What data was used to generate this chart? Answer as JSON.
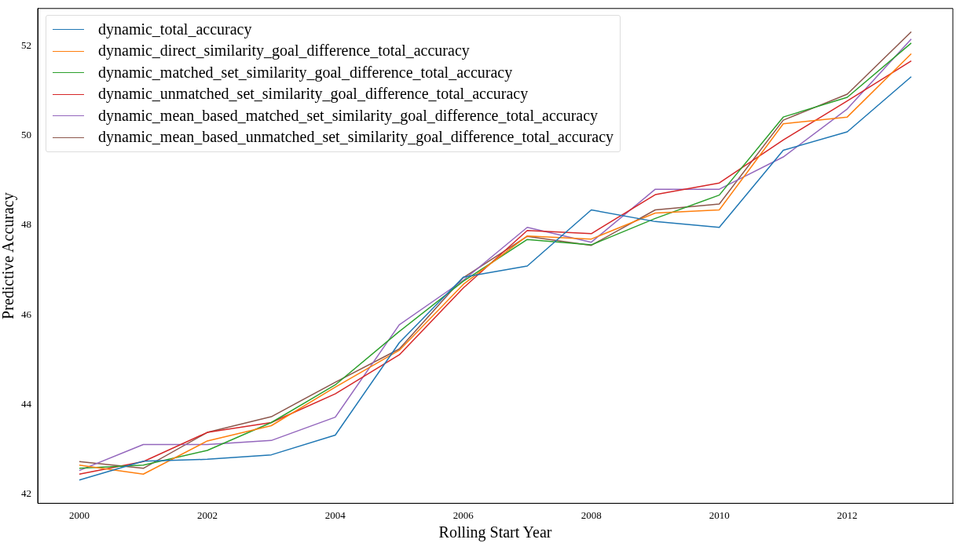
{
  "chart_data": {
    "type": "line",
    "xlabel": "Rolling Start Year",
    "ylabel": "Predictive Accuracy",
    "x": [
      2000,
      2001,
      2002,
      2003,
      2004,
      2005,
      2006,
      2007,
      2008,
      2009,
      2010,
      2011,
      2012,
      2013
    ],
    "xlim": [
      1999.35,
      2013.65
    ],
    "xticks": [
      2000,
      2002,
      2004,
      2006,
      2008,
      2010,
      2012
    ],
    "ylim": [
      41.8,
      52.83
    ],
    "yticks": [
      42,
      44,
      46,
      48,
      50,
      52
    ],
    "grid": false,
    "legend": "top left",
    "marker": "none",
    "line_style": "solid",
    "series": [
      {
        "name": "dynamic_total_accuracy",
        "color": "#1f77b4",
        "values": [
          42.32,
          42.74,
          42.78,
          42.88,
          43.32,
          45.38,
          46.84,
          47.09,
          48.34,
          48.08,
          47.95,
          49.67,
          50.08,
          51.31
        ]
      },
      {
        "name": "dynamic_direct_similarity_goal_difference_total_accuracy",
        "color": "#ff7f0e",
        "values": [
          42.65,
          42.45,
          43.19,
          43.53,
          44.39,
          45.21,
          46.68,
          47.76,
          47.69,
          48.27,
          48.34,
          50.26,
          50.41,
          51.82
        ]
      },
      {
        "name": "dynamic_matched_set_similarity_goal_difference_total_accuracy",
        "color": "#2ca02c",
        "values": [
          42.58,
          42.65,
          42.98,
          43.6,
          44.44,
          45.63,
          46.75,
          47.68,
          47.56,
          48.15,
          48.67,
          50.41,
          50.85,
          52.06
        ]
      },
      {
        "name": "dynamic_unmatched_set_similarity_goal_difference_total_accuracy",
        "color": "#d62728",
        "values": [
          42.45,
          42.73,
          43.38,
          43.6,
          44.24,
          45.11,
          46.6,
          47.88,
          47.81,
          48.68,
          48.94,
          49.9,
          50.77,
          51.66
        ]
      },
      {
        "name": "dynamic_mean_based_matched_set_similarity_goal_difference_total_accuracy",
        "color": "#9467bd",
        "values": [
          42.53,
          43.11,
          43.11,
          43.2,
          43.72,
          45.78,
          46.77,
          47.95,
          47.62,
          48.8,
          48.8,
          49.52,
          50.59,
          52.15
        ]
      },
      {
        "name": "dynamic_mean_based_unmatched_set_similarity_goal_difference_total_accuracy",
        "color": "#8c564b",
        "values": [
          42.73,
          42.58,
          43.38,
          43.73,
          44.5,
          45.24,
          46.83,
          47.75,
          47.55,
          48.34,
          48.47,
          50.34,
          50.92,
          52.31
        ]
      }
    ]
  }
}
